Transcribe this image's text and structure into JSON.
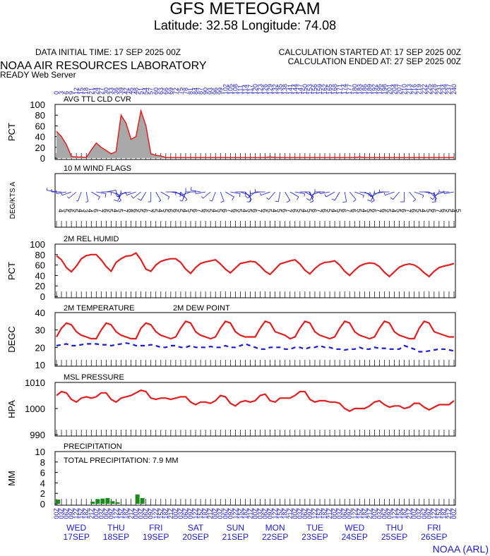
{
  "header": {
    "title": "GFS METEOGRAM",
    "location": "Latitude: 32.58 Longitude:  74.08",
    "initial_time": "DATA INITIAL TIME: 17 SEP 2025 00Z",
    "calc_started": "CALCULATION STARTED AT: 17 SEP 2025 00Z",
    "calc_ended": "CALCULATION ENDED AT: 27 SEP 2025 00Z",
    "lab": "NOAA AIR RESOURCES LABORATORY",
    "server": "READY Web Server",
    "credit": "NOAA (ARL)"
  },
  "time": {
    "hours": [
      0,
      3,
      6,
      9,
      12,
      15,
      18,
      21,
      24,
      27,
      30,
      33,
      36,
      39,
      42,
      45,
      48,
      51,
      54,
      57,
      60,
      63,
      66,
      69,
      72,
      75,
      78,
      81,
      84,
      87,
      90,
      93,
      96,
      99,
      102,
      105,
      108,
      111,
      114,
      117,
      120,
      123,
      126,
      129,
      132,
      135,
      138,
      141,
      144,
      147,
      150,
      153,
      156,
      159,
      162,
      165,
      168,
      171,
      174,
      177,
      180,
      183,
      186,
      189,
      192,
      195,
      198,
      201,
      204,
      207,
      210,
      213,
      216,
      219,
      222,
      225,
      228,
      231,
      234,
      237,
      240
    ],
    "labels": [
      "00Z",
      "03Z",
      "06Z",
      "09Z",
      "12Z",
      "15Z",
      "18Z",
      "21Z",
      "00Z",
      "03Z",
      "06Z",
      "09Z",
      "12Z",
      "15Z",
      "18Z",
      "21Z",
      "00Z",
      "03Z",
      "06Z",
      "09Z",
      "12Z",
      "15Z",
      "18Z",
      "21Z",
      "00Z",
      "03Z",
      "06Z",
      "09Z",
      "12Z",
      "15Z",
      "18Z",
      "21Z",
      "00Z",
      "03Z",
      "06Z",
      "09Z",
      "12Z",
      "15Z",
      "18Z",
      "21Z",
      "00Z",
      "03Z",
      "06Z",
      "09Z",
      "12Z",
      "15Z",
      "18Z",
      "21Z",
      "00Z",
      "03Z",
      "06Z",
      "09Z",
      "12Z",
      "15Z",
      "18Z",
      "21Z",
      "00Z",
      "03Z",
      "06Z",
      "09Z",
      "12Z",
      "15Z",
      "18Z",
      "21Z",
      "00Z",
      "03Z",
      "06Z",
      "09Z",
      "12Z",
      "15Z",
      "18Z",
      "21Z",
      "00Z",
      "03Z",
      "06Z",
      "09Z",
      "12Z",
      "15Z",
      "18Z",
      "21Z",
      "00Z"
    ],
    "days": [
      {
        "weekday": "WED",
        "date": "17SEP"
      },
      {
        "weekday": "THU",
        "date": "18SEP"
      },
      {
        "weekday": "FRI",
        "date": "19SEP"
      },
      {
        "weekday": "SAT",
        "date": "20SEP"
      },
      {
        "weekday": "SUN",
        "date": "21SEP"
      },
      {
        "weekday": "MON",
        "date": "22SEP"
      },
      {
        "weekday": "TUE",
        "date": "23SEP"
      },
      {
        "weekday": "WED",
        "date": "24SEP"
      },
      {
        "weekday": "THU",
        "date": "25SEP"
      },
      {
        "weekday": "FRI",
        "date": "26SEP"
      }
    ]
  },
  "chart_data": [
    {
      "type": "area",
      "title": "AVG TTL CLD CVR",
      "ylabel": "PCT",
      "ylim": [
        0,
        100
      ],
      "yticks": [
        0,
        20,
        40,
        60,
        80,
        100
      ],
      "color": "#e02020",
      "fill": "#a8a8a8",
      "values": [
        50,
        40,
        25,
        3,
        2,
        2,
        1,
        15,
        28,
        20,
        14,
        8,
        12,
        80,
        65,
        35,
        40,
        88,
        60,
        8,
        5,
        4,
        1,
        1,
        1,
        1,
        1,
        1,
        1,
        1,
        1,
        1,
        1,
        1,
        1,
        1,
        1,
        1,
        1,
        1,
        1,
        1,
        1,
        2,
        1,
        1,
        1,
        1,
        1,
        1,
        1,
        1,
        1,
        1,
        1,
        1,
        1,
        1,
        1,
        1,
        1,
        2,
        1,
        1,
        1,
        1,
        1,
        1,
        1,
        1,
        1,
        1,
        1,
        1,
        1,
        1,
        1,
        1,
        1,
        1,
        1
      ]
    },
    {
      "type": "wind",
      "title": "10 M  WIND FLAGS",
      "ylabel": "DEG/KTS  A",
      "color": "#1a1ad0",
      "directions": [
        280,
        270,
        260,
        250,
        230,
        200,
        170,
        120,
        100,
        90,
        80,
        110,
        150,
        200,
        240,
        260,
        250,
        230,
        210,
        180,
        150,
        120,
        90,
        100,
        120,
        140,
        200,
        250,
        270,
        280,
        260,
        230,
        200,
        160,
        120,
        100,
        90,
        110,
        140,
        180,
        230,
        260,
        270,
        250,
        220,
        190,
        150,
        120,
        100,
        90,
        120,
        160,
        210,
        250,
        270,
        260,
        240,
        210,
        170,
        140,
        110,
        100,
        120,
        150,
        200,
        240,
        260,
        270,
        250,
        220,
        180,
        140,
        110,
        90,
        100,
        130,
        170,
        220,
        250,
        270,
        260
      ],
      "speeds": [
        4,
        5,
        6,
        5,
        4,
        3,
        4,
        6,
        7,
        6,
        5,
        4,
        5,
        7,
        8,
        6,
        5,
        6,
        7,
        5,
        4,
        5,
        6,
        6,
        5,
        4,
        5,
        6,
        7,
        6,
        5,
        4,
        5,
        6,
        7,
        6,
        5,
        4,
        5,
        6,
        7,
        6,
        5,
        4,
        5,
        6,
        7,
        6,
        5,
        4,
        5,
        6,
        7,
        6,
        5,
        4,
        5,
        6,
        7,
        6,
        5,
        4,
        5,
        6,
        7,
        6,
        5,
        4,
        5,
        6,
        7,
        6,
        5,
        4,
        5,
        6,
        7,
        6,
        5,
        4,
        5
      ]
    },
    {
      "type": "line",
      "title": "2M REL HUMID",
      "ylabel": "PCT",
      "ylim": [
        0,
        100
      ],
      "yticks": [
        0,
        20,
        40,
        60,
        80,
        100
      ],
      "color": "#e02020",
      "values": [
        78,
        70,
        55,
        47,
        58,
        72,
        78,
        80,
        80,
        70,
        57,
        48,
        65,
        72,
        77,
        78,
        83,
        70,
        52,
        48,
        60,
        67,
        70,
        72,
        72,
        65,
        52,
        44,
        55,
        63,
        66,
        68,
        70,
        62,
        52,
        45,
        54,
        63,
        65,
        67,
        66,
        58,
        48,
        42,
        52,
        62,
        65,
        68,
        70,
        62,
        50,
        43,
        53,
        61,
        65,
        66,
        68,
        60,
        48,
        40,
        50,
        58,
        62,
        64,
        63,
        57,
        46,
        38,
        47,
        56,
        60,
        62,
        60,
        54,
        45,
        38,
        48,
        55,
        58,
        60,
        63
      ]
    },
    {
      "type": "line",
      "ylabel": "DEGC",
      "ylim": [
        10,
        40
      ],
      "yticks": [
        10,
        20,
        30,
        40
      ],
      "series": [
        {
          "name": "2M TEMPERATURE",
          "color": "#e02020",
          "dashed": false,
          "values": [
            26,
            31,
            34,
            33,
            29,
            27,
            26,
            25,
            25,
            30,
            34,
            33,
            29,
            27,
            26,
            25,
            25,
            31,
            34,
            33,
            29,
            27,
            26,
            25,
            26,
            31,
            35,
            34,
            29,
            27,
            26,
            25,
            26,
            31,
            35,
            34,
            29,
            27,
            26,
            26,
            26,
            31,
            35,
            34,
            29,
            28,
            27,
            25,
            26,
            31,
            35,
            34,
            29,
            27,
            26,
            25,
            26,
            31,
            35,
            34,
            29,
            27,
            26,
            25,
            26,
            31,
            35,
            34,
            29,
            27,
            26,
            25,
            25,
            31,
            35,
            34,
            29,
            28,
            27,
            26,
            26
          ]
        },
        {
          "name": "2M  DEW POINT",
          "color": "#1a1ad0",
          "dashed": true,
          "values": [
            21,
            21.5,
            22,
            21,
            21,
            21.5,
            22,
            22,
            22,
            21.5,
            21.5,
            21,
            21.5,
            22,
            22.5,
            22,
            21,
            21,
            21,
            21.5,
            21,
            20,
            20,
            21,
            21,
            20,
            20,
            21,
            20,
            20,
            20,
            20.5,
            20,
            20,
            21,
            20,
            20,
            21,
            22,
            21,
            20,
            19,
            19,
            20,
            20,
            20,
            19,
            19,
            20,
            20,
            19,
            20,
            20,
            21,
            20,
            20,
            19,
            19,
            18.5,
            19,
            19,
            20,
            19,
            19,
            20,
            19.5,
            19.5,
            19,
            19,
            19,
            21,
            20,
            19,
            17.5,
            17.5,
            18,
            18.5,
            19,
            19,
            18.5,
            18
          ]
        }
      ]
    },
    {
      "type": "line",
      "title": "MSL PRESSURE",
      "ylabel": "HPA",
      "ylim": [
        990,
        1010
      ],
      "yticks": [
        990,
        1000,
        1010
      ],
      "color": "#e02020",
      "values": [
        1005,
        1006.5,
        1006,
        1003.5,
        1002.5,
        1004,
        1004.5,
        1004,
        1004.5,
        1006,
        1006,
        1003.5,
        1002.5,
        1004,
        1004.5,
        1005,
        1006,
        1007,
        1006.5,
        1004,
        1003.5,
        1004,
        1004,
        1003.5,
        1004,
        1004.5,
        1004.5,
        1002.5,
        1001.5,
        1002.5,
        1002.5,
        1002,
        1003,
        1005,
        1004.5,
        1002,
        1001,
        1002.5,
        1003,
        1002.5,
        1003,
        1005,
        1005.5,
        1003,
        1002.5,
        1004,
        1004,
        1004,
        1005,
        1006.5,
        1006.5,
        1003.5,
        1002.5,
        1003,
        1003,
        1002.5,
        1002.5,
        1002,
        1000,
        999,
        1000,
        1000,
        1000,
        1001,
        1002.5,
        1003,
        1001.5,
        1000.5,
        1001,
        1001,
        1000,
        1000.5,
        1002,
        1002,
        1000.5,
        999.5,
        1000.5,
        1001.5,
        1001.5,
        1001.5,
        1003
      ]
    },
    {
      "type": "bar",
      "title": "PRECIPITATION",
      "annotation": "TOTAL PRECIPITATION:   7.9 MM",
      "ylabel": "MM",
      "ylim": [
        0,
        10
      ],
      "yticks": [
        0,
        2,
        4,
        6,
        8,
        10
      ],
      "color": "#1c8a1c",
      "values": [
        0.8,
        0,
        0,
        0,
        0,
        0,
        0,
        0.4,
        0.9,
        1.0,
        1.1,
        0.5,
        0.3,
        0,
        0,
        0,
        1.8,
        1.1,
        0,
        0,
        0,
        0,
        0,
        0,
        0,
        0,
        0,
        0,
        0,
        0,
        0,
        0,
        0,
        0,
        0,
        0,
        0,
        0,
        0,
        0,
        0,
        0,
        0,
        0,
        0,
        0,
        0,
        0,
        0,
        0,
        0,
        0,
        0,
        0,
        0,
        0,
        0,
        0,
        0,
        0,
        0,
        0,
        0,
        0,
        0,
        0,
        0,
        0,
        0,
        0,
        0,
        0,
        0,
        0,
        0,
        0,
        0,
        0,
        0,
        0,
        0
      ]
    }
  ]
}
